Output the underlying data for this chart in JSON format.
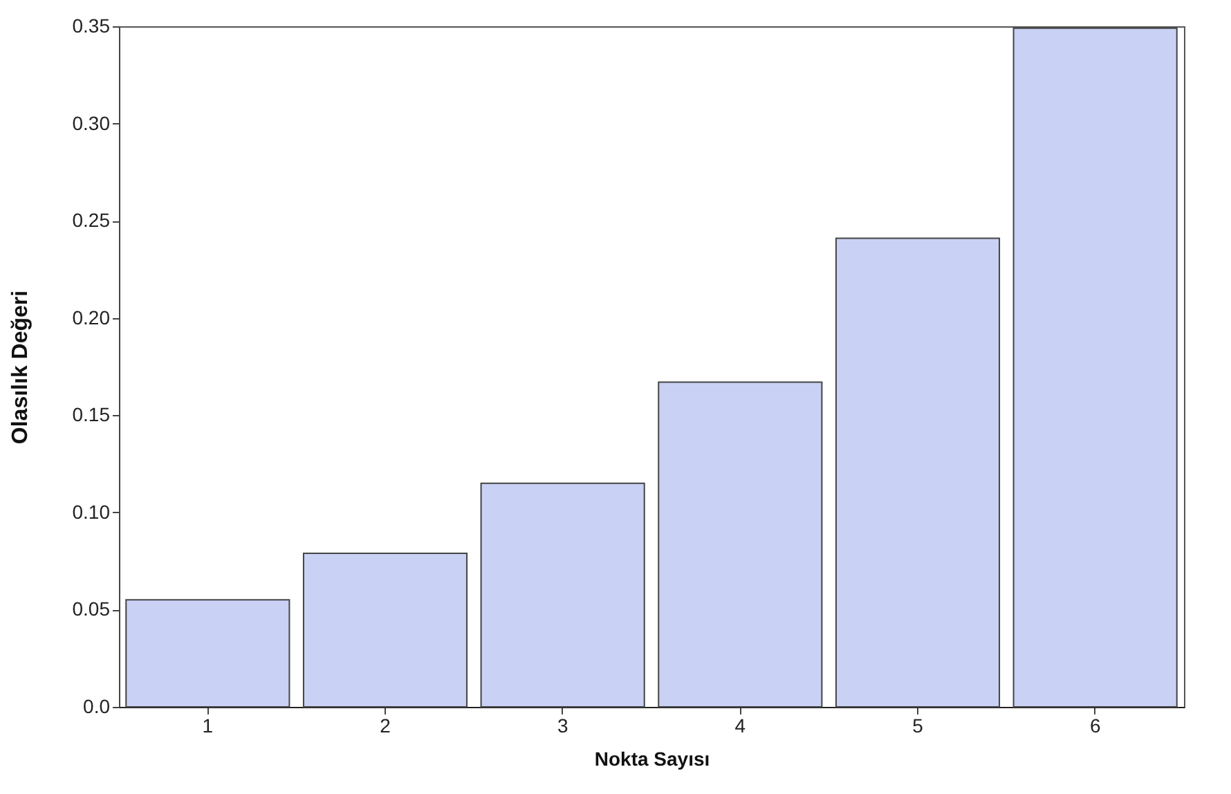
{
  "chart_data": {
    "type": "bar",
    "xlabel": "Nokta Sayısı",
    "ylabel": "Olasılık  Değeri",
    "categories": [
      "1",
      "2",
      "3",
      "4",
      "5",
      "6"
    ],
    "values": [
      0.055,
      0.079,
      0.115,
      0.167,
      0.241,
      0.349
    ],
    "color": "#c9d1f5",
    "ylim": [
      0,
      0.35
    ],
    "yticks": [
      {
        "value": 0,
        "label": "0.0"
      },
      0.05,
      {
        "value": 0.1,
        "label": "0.10"
      },
      0.15,
      {
        "value": 0.2,
        "label": "0.20"
      },
      0.25,
      {
        "value": 0.3,
        "label": "0.30"
      },
      0.35
    ],
    "grid": false
  }
}
